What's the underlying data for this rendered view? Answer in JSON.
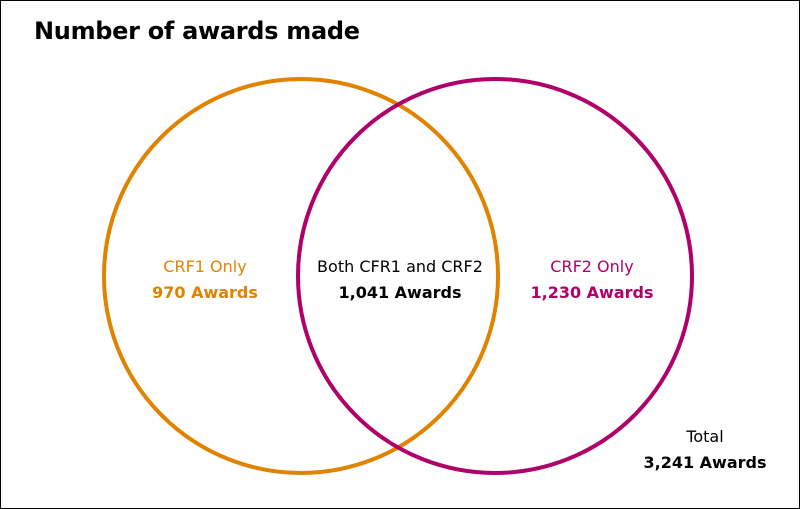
{
  "title": "Number of awards made",
  "colors": {
    "crf1": "#E08300",
    "crf2": "#B0006A",
    "both": "#000000",
    "border": "#000000"
  },
  "sets": {
    "crf1_only": {
      "label": "CRF1 Only",
      "value": "970 Awards",
      "count": 970
    },
    "both": {
      "label": "Both CFR1 and CRF2",
      "value": "1,041 Awards",
      "count": 1041
    },
    "crf2_only": {
      "label": "CRF2 Only",
      "value": "1,230 Awards",
      "count": 1230
    }
  },
  "total": {
    "label": "Total",
    "value": "3,241 Awards",
    "count": 3241
  }
}
